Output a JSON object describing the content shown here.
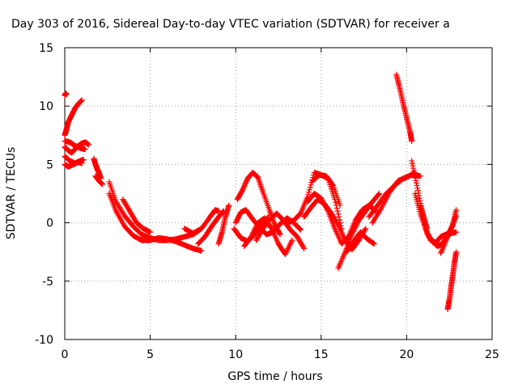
{
  "chart_data": {
    "type": "scatter",
    "title": "Day 303 of 2016, Sidereal Day-to-day VTEC variation (SDTVAR) for receiver a",
    "xlabel": "GPS time / hours",
    "ylabel": "SDTVAR / TECUs",
    "xlim": [
      0,
      25
    ],
    "ylim": [
      -10,
      15
    ],
    "xticks": [
      0,
      5,
      10,
      15,
      20,
      25
    ],
    "yticks": [
      -10,
      -5,
      0,
      5,
      10,
      15
    ],
    "xtick_labels": [
      "0",
      "5",
      "10",
      "15",
      "20",
      "25"
    ],
    "ytick_labels": [
      "-10",
      "-5",
      "0",
      "5",
      "10",
      "15"
    ],
    "grid": true,
    "legend": "none",
    "marker": "plus",
    "color": "#ff0000",
    "series": [
      {
        "x": [
          0.0,
          0.1,
          0.2,
          0.4,
          0.6,
          0.8,
          1.0
        ],
        "y": [
          7.5,
          8.0,
          8.6,
          9.2,
          9.8,
          10.2,
          10.5
        ]
      },
      {
        "x": [
          0.0,
          0.05,
          0.1
        ],
        "y": [
          10.9,
          11.1,
          11.0
        ]
      },
      {
        "x": [
          0.0,
          0.2,
          0.4,
          0.6,
          0.8,
          1.0,
          1.2,
          1.4
        ],
        "y": [
          6.5,
          6.2,
          6.0,
          6.3,
          6.6,
          6.8,
          6.9,
          6.7
        ]
      },
      {
        "x": [
          0.0,
          0.3,
          0.6,
          0.9,
          1.1
        ],
        "y": [
          5.7,
          5.3,
          5.1,
          5.3,
          5.4
        ]
      },
      {
        "x": [
          0.0,
          0.2,
          0.5,
          0.8,
          1.0
        ],
        "y": [
          5.0,
          4.8,
          5.0,
          5.2,
          5.1
        ]
      },
      {
        "x": [
          0.0,
          0.3,
          0.6,
          0.9,
          1.2
        ],
        "y": [
          7.0,
          6.9,
          6.6,
          6.4,
          6.3
        ]
      },
      {
        "x": [
          1.7,
          1.8,
          1.9,
          2.0,
          2.1
        ],
        "y": [
          5.5,
          5.0,
          4.6,
          4.3,
          3.8
        ]
      },
      {
        "x": [
          1.8,
          2.0,
          2.2
        ],
        "y": [
          4.0,
          3.6,
          3.3
        ]
      },
      {
        "x": [
          2.6,
          3.0,
          3.5,
          4.0,
          4.5,
          5.0,
          5.5,
          6.0,
          6.5,
          7.0,
          7.5,
          7.9
        ],
        "y": [
          3.5,
          1.8,
          0.6,
          -0.3,
          -1.0,
          -1.3,
          -1.5,
          -1.5,
          -1.4,
          -1.2,
          -1.0,
          -0.6
        ]
      },
      {
        "x": [
          2.6,
          3.0,
          3.5,
          4.0,
          4.5,
          5.0,
          5.5,
          6.0,
          6.5,
          7.0,
          7.5,
          8.0
        ],
        "y": [
          2.5,
          1.0,
          -0.3,
          -1.1,
          -1.5,
          -1.5,
          -1.3,
          -1.4,
          -1.6,
          -1.9,
          -2.2,
          -2.4
        ]
      },
      {
        "x": [
          3.4,
          3.8,
          4.2,
          4.6,
          5.0
        ],
        "y": [
          2.0,
          1.0,
          0.0,
          -0.5,
          -0.8
        ]
      },
      {
        "x": [
          7.0,
          7.5,
          8.0,
          8.5,
          8.8,
          9.0
        ],
        "y": [
          -0.5,
          -0.9,
          -0.5,
          0.5,
          1.1,
          1.0
        ]
      },
      {
        "x": [
          7.8,
          8.2,
          8.6,
          9.0,
          9.3
        ],
        "y": [
          -1.8,
          -1.2,
          -0.3,
          0.5,
          1.0
        ]
      },
      {
        "x": [
          9.0,
          9.2,
          9.4,
          9.6
        ],
        "y": [
          -1.8,
          -0.8,
          0.5,
          1.5
        ]
      },
      {
        "x": [
          10.1,
          10.4,
          10.7,
          11.0,
          11.3,
          11.6,
          12.0,
          12.3,
          12.6
        ],
        "y": [
          2.0,
          2.8,
          3.8,
          4.3,
          3.9,
          2.6,
          1.0,
          -0.2,
          -1.0
        ]
      },
      {
        "x": [
          9.9,
          10.3,
          10.7,
          11.1,
          11.5,
          11.9
        ],
        "y": [
          -0.5,
          -1.3,
          -1.6,
          -1.0,
          -0.3,
          0.5
        ]
      },
      {
        "x": [
          10.0,
          10.3,
          10.6,
          11.0,
          11.4,
          11.8,
          12.2,
          12.6,
          13.0,
          13.4,
          13.8
        ],
        "y": [
          0.0,
          0.9,
          1.1,
          0.3,
          -0.4,
          -1.0,
          -0.8,
          -0.1,
          0.4,
          0.0,
          -0.6
        ]
      },
      {
        "x": [
          10.5,
          10.9,
          11.3,
          11.7,
          12.1,
          12.5,
          12.9,
          13.3
        ],
        "y": [
          -2.0,
          -1.2,
          0.0,
          0.4,
          -0.5,
          -1.8,
          -2.7,
          -1.5
        ]
      },
      {
        "x": [
          11.2,
          11.6,
          12.0,
          12.4,
          12.8,
          13.2,
          13.6,
          14.0
        ],
        "y": [
          -1.5,
          -0.5,
          0.3,
          0.8,
          0.2,
          -0.6,
          -1.2,
          -2.2
        ]
      },
      {
        "x": [
          13.0,
          13.4,
          13.8,
          14.2,
          14.6,
          15.0,
          15.4,
          15.8,
          16.2
        ],
        "y": [
          0.0,
          0.2,
          0.8,
          2.2,
          4.3,
          4.1,
          3.8,
          2.0,
          -0.5
        ]
      },
      {
        "x": [
          14.0,
          14.4,
          14.8,
          15.2,
          15.6,
          16.0,
          16.4,
          16.8,
          17.2,
          17.6
        ],
        "y": [
          0.5,
          1.3,
          2.0,
          1.6,
          0.8,
          -0.2,
          -1.5,
          -2.3,
          -1.5,
          -0.5
        ]
      },
      {
        "x": [
          14.2,
          14.6,
          15.0,
          15.4,
          15.8,
          16.2,
          16.6,
          17.0,
          17.4,
          17.8,
          18.2
        ],
        "y": [
          1.8,
          2.5,
          2.1,
          1.0,
          -0.5,
          -1.8,
          -1.2,
          0.2,
          1.1,
          1.5,
          1.0
        ]
      },
      {
        "x": [
          14.5,
          14.9,
          15.3,
          15.7,
          16.1
        ],
        "y": [
          3.6,
          4.1,
          4.0,
          3.2,
          1.5
        ]
      },
      {
        "x": [
          16.0,
          16.4,
          16.8,
          17.2,
          17.6,
          18.0,
          18.4
        ],
        "y": [
          -3.9,
          -2.5,
          -1.0,
          0.2,
          1.0,
          1.8,
          2.5
        ]
      },
      {
        "x": [
          16.5,
          16.9,
          17.3,
          17.7,
          18.1
        ],
        "y": [
          -2.5,
          -1.6,
          -0.8,
          -1.4,
          -1.8
        ]
      },
      {
        "x": [
          17.8,
          18.3,
          18.8,
          19.3,
          19.8,
          20.3,
          20.8
        ],
        "y": [
          0.5,
          1.5,
          2.5,
          3.2,
          3.8,
          4.1,
          4.0
        ]
      },
      {
        "x": [
          18.0,
          18.5,
          19.0,
          19.5,
          20.0,
          20.5
        ],
        "y": [
          0.0,
          1.2,
          2.6,
          3.6,
          3.9,
          4.3
        ]
      },
      {
        "x": [
          19.4,
          19.6,
          19.8,
          20.0,
          20.2,
          20.3
        ],
        "y": [
          12.7,
          11.5,
          10.2,
          9.0,
          7.8,
          7.0
        ]
      },
      {
        "x": [
          20.3,
          20.6,
          20.9,
          21.2,
          21.5,
          21.8,
          22.1,
          22.4,
          22.7,
          22.9
        ],
        "y": [
          5.3,
          3.2,
          1.0,
          -0.9,
          -1.6,
          -2.0,
          -1.8,
          -1.1,
          -0.2,
          1.1
        ]
      },
      {
        "x": [
          20.5,
          20.8,
          21.1,
          21.4,
          21.7,
          22.0,
          22.3,
          22.6,
          22.9
        ],
        "y": [
          2.5,
          0.8,
          -0.5,
          -1.5,
          -1.7,
          -1.2,
          -1.0,
          -0.9,
          -0.8
        ]
      },
      {
        "x": [
          20.8,
          21.0,
          21.2
        ],
        "y": [
          1.5,
          0.5,
          -0.5
        ]
      },
      {
        "x": [
          22.0,
          22.3,
          22.6,
          22.9
        ],
        "y": [
          -2.6,
          -1.5,
          -0.5,
          0.6
        ]
      },
      {
        "x": [
          22.4,
          22.5,
          22.6,
          22.7,
          22.8,
          22.9
        ],
        "y": [
          -7.4,
          -6.6,
          -5.5,
          -4.5,
          -3.4,
          -2.5
        ]
      }
    ]
  }
}
